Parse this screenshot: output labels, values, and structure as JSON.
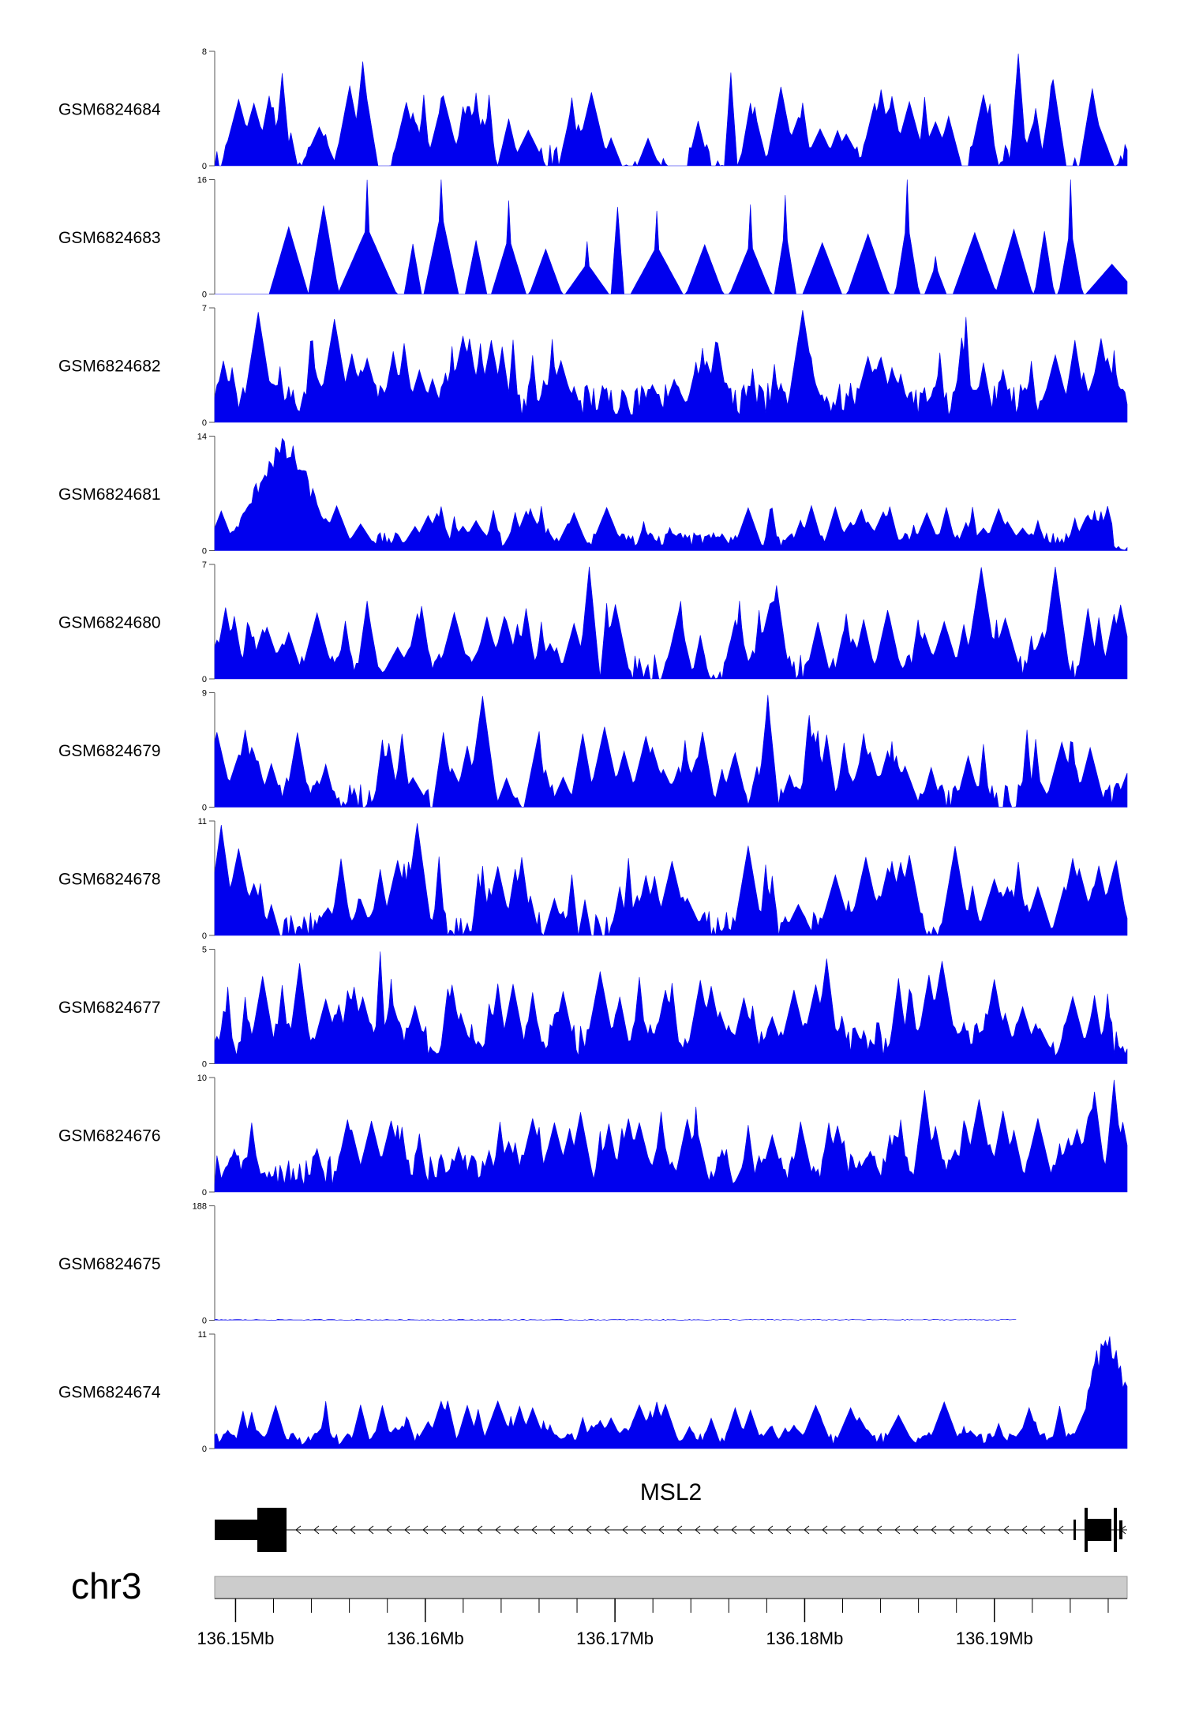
{
  "chart_data": {
    "type": "area",
    "xlabel": "",
    "ylabel": "",
    "color": "#0000ee",
    "xlim": [
      136.1489,
      136.197
    ],
    "chromosome": "chr3",
    "gene": {
      "name": "MSL2",
      "strand": "-",
      "start": 136.149,
      "end": 136.197,
      "blocks": [
        [
          136.149,
          136.153
        ],
        [
          136.1513,
          136.153
        ],
        [
          136.1943,
          136.1945
        ],
        [
          136.1952,
          136.1966
        ],
        [
          136.1951,
          136.1953
        ],
        [
          136.1963,
          136.1965
        ],
        [
          136.1968,
          136.197
        ]
      ]
    },
    "axis": {
      "tick_labels": [
        "136.15Mb",
        "136.16Mb",
        "136.17Mb",
        "136.18Mb",
        "136.19Mb"
      ],
      "tick_values": [
        136.15,
        136.16,
        136.17,
        136.18,
        136.19
      ]
    },
    "tracks": [
      {
        "name": "GSM6824684",
        "ymax": 8,
        "ymin": 0,
        "y_top_label": "8",
        "y_bottom_label": "0",
        "style": "sparse"
      },
      {
        "name": "GSM6824683",
        "ymax": 16,
        "ymin": 0,
        "y_top_label": "16",
        "y_bottom_label": "0",
        "style": "triangles"
      },
      {
        "name": "GSM6824682",
        "ymax": 7,
        "ymin": 0,
        "y_top_label": "7",
        "y_bottom_label": "0",
        "style": "dense"
      },
      {
        "name": "GSM6824681",
        "ymax": 14,
        "ymin": 0,
        "y_top_label": "14",
        "y_bottom_label": "0",
        "style": "peak_left"
      },
      {
        "name": "GSM6824680",
        "ymax": 7,
        "ymin": 0,
        "y_top_label": "7",
        "y_bottom_label": "0",
        "style": "spiky"
      },
      {
        "name": "GSM6824679",
        "ymax": 9,
        "ymin": 0,
        "y_top_label": "9",
        "y_bottom_label": "0",
        "style": "spiky"
      },
      {
        "name": "GSM6824678",
        "ymax": 11,
        "ymin": 0,
        "y_top_label": "11",
        "y_bottom_label": "0",
        "style": "spiky"
      },
      {
        "name": "GSM6824677",
        "ymax": 5,
        "ymin": 0,
        "y_top_label": "5",
        "y_bottom_label": "0",
        "style": "dense"
      },
      {
        "name": "GSM6824676",
        "ymax": 10,
        "ymin": 0,
        "y_top_label": "10",
        "y_bottom_label": "0",
        "style": "dense"
      },
      {
        "name": "GSM6824675",
        "ymax": 188,
        "ymin": 0,
        "y_top_label": "188",
        "y_bottom_label": "0",
        "style": "peak_right"
      },
      {
        "name": "GSM6824674",
        "ymax": 11,
        "ymin": 0,
        "y_top_label": "11",
        "y_bottom_label": "0",
        "style": "low_peak_right"
      }
    ]
  }
}
